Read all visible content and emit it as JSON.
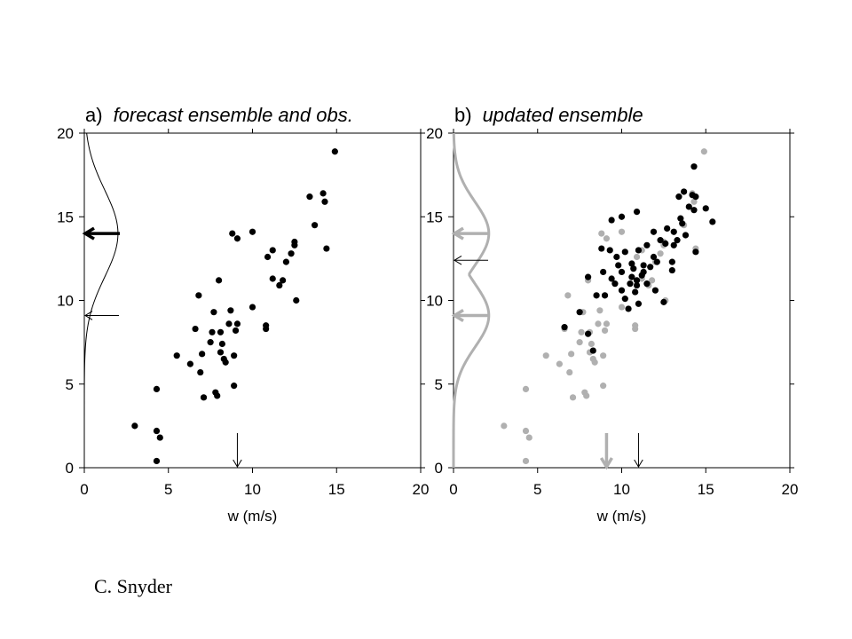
{
  "credit": "C. Snyder",
  "colors": {
    "black": "#000000",
    "gray": "#b0b0b0"
  },
  "chart_data": [
    {
      "type": "scatter",
      "panel_letter": "a)",
      "title": "forecast ensemble and obs.",
      "xlabel": "w (m/s)",
      "ylabel": "",
      "xlim": [
        0,
        20
      ],
      "ylim": [
        0,
        20
      ],
      "xticks": [
        0,
        5,
        10,
        15,
        20
      ],
      "yticks": [
        0,
        5,
        10,
        15,
        20
      ],
      "series": [
        {
          "color": "#000000",
          "points": [
            [
              3.0,
              2.5
            ],
            [
              4.3,
              4.7
            ],
            [
              4.3,
              2.2
            ],
            [
              4.5,
              1.8
            ],
            [
              4.3,
              0.4
            ],
            [
              5.5,
              6.7
            ],
            [
              6.3,
              6.2
            ],
            [
              6.6,
              8.3
            ],
            [
              6.8,
              10.3
            ],
            [
              7.0,
              6.8
            ],
            [
              6.9,
              5.7
            ],
            [
              7.1,
              4.2
            ],
            [
              7.5,
              7.5
            ],
            [
              7.6,
              8.1
            ],
            [
              7.7,
              9.3
            ],
            [
              7.8,
              4.5
            ],
            [
              7.9,
              4.3
            ],
            [
              8.0,
              11.2
            ],
            [
              8.1,
              6.9
            ],
            [
              8.1,
              8.1
            ],
            [
              8.2,
              7.4
            ],
            [
              8.3,
              6.5
            ],
            [
              8.4,
              6.3
            ],
            [
              8.6,
              8.6
            ],
            [
              8.7,
              9.4
            ],
            [
              8.8,
              14.0
            ],
            [
              8.9,
              6.7
            ],
            [
              9.0,
              8.2
            ],
            [
              9.1,
              13.7
            ],
            [
              8.9,
              4.9
            ],
            [
              9.1,
              8.6
            ],
            [
              10.0,
              9.6
            ],
            [
              10.0,
              14.1
            ],
            [
              10.8,
              8.3
            ],
            [
              10.8,
              8.5
            ],
            [
              10.9,
              12.6
            ],
            [
              11.2,
              13.0
            ],
            [
              11.2,
              11.3
            ],
            [
              11.6,
              10.9
            ],
            [
              11.8,
              11.2
            ],
            [
              12.0,
              12.3
            ],
            [
              12.3,
              12.8
            ],
            [
              12.5,
              13.3
            ],
            [
              12.5,
              13.5
            ],
            [
              12.6,
              10.0
            ],
            [
              13.4,
              16.2
            ],
            [
              13.7,
              14.5
            ],
            [
              14.2,
              16.4
            ],
            [
              14.3,
              15.9
            ],
            [
              14.4,
              13.1
            ],
            [
              14.9,
              18.9
            ]
          ]
        }
      ],
      "density_curve": {
        "color": "#000000",
        "center": 14.0,
        "sd": 2.6,
        "peak_x": 2.0
      },
      "arrows": [
        {
          "axis": "y",
          "value": 14.0,
          "color": "#000000",
          "style": "bold"
        },
        {
          "axis": "y",
          "value": 9.1,
          "color": "#000000",
          "style": "thin"
        },
        {
          "axis": "x",
          "value": 9.1,
          "color": "#000000",
          "style": "thin"
        }
      ]
    },
    {
      "type": "scatter",
      "panel_letter": "b)",
      "title": "updated ensemble",
      "xlabel": "w (m/s)",
      "ylabel": "",
      "xlim": [
        0,
        20
      ],
      "ylim": [
        0,
        20
      ],
      "xticks": [
        0,
        5,
        10,
        15,
        20
      ],
      "yticks": [
        0,
        5,
        10,
        15,
        20
      ],
      "series": [
        {
          "color": "#b0b0b0",
          "points": [
            [
              3.0,
              2.5
            ],
            [
              4.3,
              4.7
            ],
            [
              4.3,
              2.2
            ],
            [
              4.5,
              1.8
            ],
            [
              4.3,
              0.4
            ],
            [
              5.5,
              6.7
            ],
            [
              6.3,
              6.2
            ],
            [
              6.6,
              8.3
            ],
            [
              6.8,
              10.3
            ],
            [
              7.0,
              6.8
            ],
            [
              6.9,
              5.7
            ],
            [
              7.1,
              4.2
            ],
            [
              7.5,
              7.5
            ],
            [
              7.6,
              8.1
            ],
            [
              7.7,
              9.3
            ],
            [
              7.8,
              4.5
            ],
            [
              7.9,
              4.3
            ],
            [
              8.0,
              11.2
            ],
            [
              8.1,
              6.9
            ],
            [
              8.1,
              8.1
            ],
            [
              8.2,
              7.4
            ],
            [
              8.3,
              6.5
            ],
            [
              8.4,
              6.3
            ],
            [
              8.6,
              8.6
            ],
            [
              8.7,
              9.4
            ],
            [
              8.8,
              14.0
            ],
            [
              8.9,
              6.7
            ],
            [
              9.0,
              8.2
            ],
            [
              9.1,
              13.7
            ],
            [
              8.9,
              4.9
            ],
            [
              9.1,
              8.6
            ],
            [
              10.0,
              9.6
            ],
            [
              10.0,
              14.1
            ],
            [
              10.8,
              8.3
            ],
            [
              10.8,
              8.5
            ],
            [
              10.9,
              12.6
            ],
            [
              11.2,
              13.0
            ],
            [
              11.2,
              11.3
            ],
            [
              11.6,
              10.9
            ],
            [
              11.8,
              11.2
            ],
            [
              12.0,
              12.3
            ],
            [
              12.3,
              12.8
            ],
            [
              12.5,
              13.3
            ],
            [
              12.5,
              13.5
            ],
            [
              12.6,
              10.0
            ],
            [
              13.4,
              16.2
            ],
            [
              13.7,
              14.5
            ],
            [
              14.2,
              16.4
            ],
            [
              14.3,
              15.9
            ],
            [
              14.4,
              13.1
            ],
            [
              14.9,
              18.9
            ]
          ]
        },
        {
          "color": "#000000",
          "points": [
            [
              6.6,
              8.4
            ],
            [
              7.5,
              9.3
            ],
            [
              8.0,
              8.0
            ],
            [
              8.3,
              7.0
            ],
            [
              8.5,
              10.3
            ],
            [
              8.0,
              11.4
            ],
            [
              8.8,
              13.1
            ],
            [
              8.9,
              11.7
            ],
            [
              9.0,
              10.3
            ],
            [
              9.3,
              13.0
            ],
            [
              9.4,
              14.8
            ],
            [
              9.8,
              12.1
            ],
            [
              9.4,
              11.3
            ],
            [
              9.6,
              11.0
            ],
            [
              9.7,
              12.6
            ],
            [
              10.0,
              10.6
            ],
            [
              10.0,
              15.0
            ],
            [
              10.0,
              11.7
            ],
            [
              10.2,
              12.9
            ],
            [
              10.2,
              10.1
            ],
            [
              10.4,
              9.5
            ],
            [
              10.5,
              11.0
            ],
            [
              10.6,
              12.2
            ],
            [
              10.6,
              11.4
            ],
            [
              10.7,
              11.9
            ],
            [
              10.8,
              10.5
            ],
            [
              10.9,
              11.2
            ],
            [
              10.9,
              10.9
            ],
            [
              11.0,
              13.0
            ],
            [
              10.9,
              15.3
            ],
            [
              11.0,
              9.8
            ],
            [
              11.2,
              11.5
            ],
            [
              11.3,
              11.7
            ],
            [
              11.3,
              12.1
            ],
            [
              11.5,
              11.0
            ],
            [
              11.5,
              13.3
            ],
            [
              11.7,
              12.0
            ],
            [
              11.9,
              12.6
            ],
            [
              11.9,
              14.1
            ],
            [
              12.0,
              10.6
            ],
            [
              12.1,
              12.3
            ],
            [
              12.3,
              13.6
            ],
            [
              12.5,
              9.9
            ],
            [
              12.6,
              13.4
            ],
            [
              12.7,
              14.3
            ],
            [
              13.0,
              12.3
            ],
            [
              13.0,
              11.8
            ],
            [
              13.1,
              14.1
            ],
            [
              13.1,
              13.3
            ],
            [
              13.3,
              13.6
            ],
            [
              13.4,
              16.2
            ],
            [
              13.5,
              14.9
            ],
            [
              13.6,
              14.6
            ],
            [
              13.8,
              13.9
            ],
            [
              13.7,
              16.5
            ],
            [
              14.0,
              15.6
            ],
            [
              14.2,
              16.3
            ],
            [
              14.4,
              16.2
            ],
            [
              14.3,
              15.4
            ],
            [
              14.4,
              12.9
            ],
            [
              14.3,
              18.0
            ],
            [
              15.0,
              15.5
            ],
            [
              15.4,
              14.7
            ]
          ]
        }
      ],
      "density_curves": [
        {
          "color": "#b0b0b0",
          "style": "bold",
          "centers": [
            14.0,
            9.1
          ],
          "sd": 1.9,
          "peak_x": 2.1
        }
      ],
      "arrows": [
        {
          "axis": "y",
          "value": 14.0,
          "color": "#b0b0b0",
          "style": "bold"
        },
        {
          "axis": "y",
          "value": 12.4,
          "color": "#000000",
          "style": "thin"
        },
        {
          "axis": "y",
          "value": 9.1,
          "color": "#b0b0b0",
          "style": "bold"
        },
        {
          "axis": "x",
          "value": 9.1,
          "color": "#b0b0b0",
          "style": "bold"
        },
        {
          "axis": "x",
          "value": 11.0,
          "color": "#000000",
          "style": "thin"
        }
      ]
    }
  ]
}
